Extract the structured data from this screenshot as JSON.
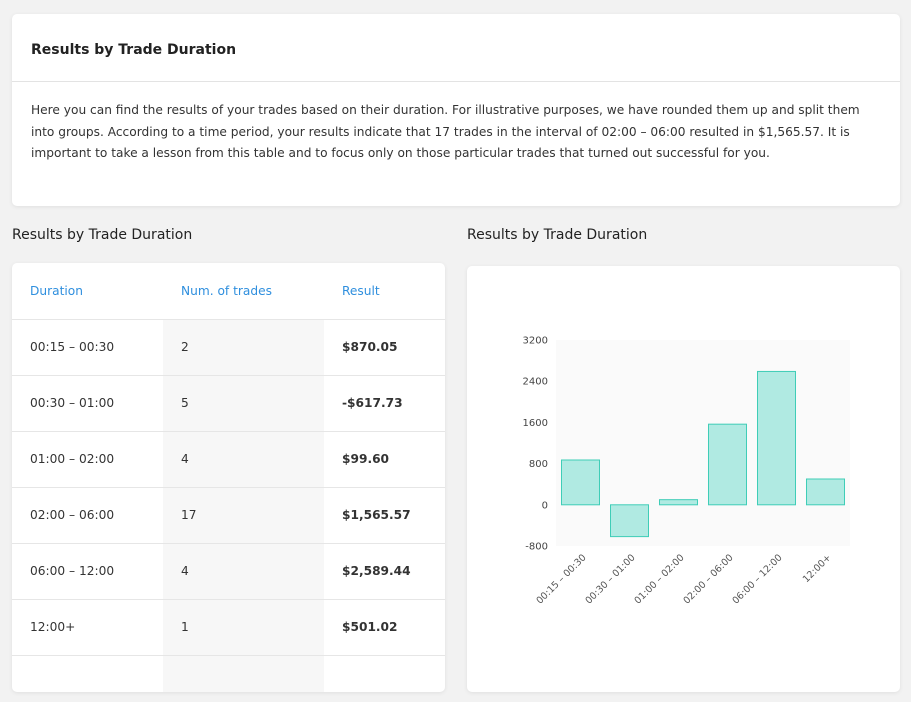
{
  "intro": {
    "title": "Results by Trade Duration",
    "description": "Here you can find the results of your trades based on their duration. For illustrative purposes, we have rounded them up and split them into groups. According to a time period, your results indicate that 17 trades in the interval of 02:00 – 06:00 resulted in $1,565.57. It is important to take a lesson from this table and to focus only on those particular trades that turned out successful for you."
  },
  "table_section": {
    "title": "Results by Trade Duration",
    "headers": [
      "Duration",
      "Num. of trades",
      "Result"
    ],
    "rows": [
      {
        "duration": "00:15 – 00:30",
        "trades": "2",
        "result": "$870.05",
        "sign": "pos"
      },
      {
        "duration": "00:30 – 01:00",
        "trades": "5",
        "result": "-$617.73",
        "sign": "neg"
      },
      {
        "duration": "01:00 – 02:00",
        "trades": "4",
        "result": "$99.60",
        "sign": "pos"
      },
      {
        "duration": "02:00 – 06:00",
        "trades": "17",
        "result": "$1,565.57",
        "sign": "pos"
      },
      {
        "duration": "06:00 – 12:00",
        "trades": "4",
        "result": "$2,589.44",
        "sign": "pos"
      },
      {
        "duration": "12:00+",
        "trades": "1",
        "result": "$501.02",
        "sign": "pos"
      }
    ]
  },
  "chart_section": {
    "title": "Results by Trade Duration"
  },
  "colors": {
    "header_blue": "#2f8fde",
    "positive": "#1bc7a8",
    "negative": "#ef4b5a",
    "bar_fill": "#b0eae2",
    "bar_stroke": "#3fcdb7"
  },
  "chart_data": {
    "type": "bar",
    "categories": [
      "00:15 – 00:30",
      "00:30 – 01:00",
      "01:00 – 02:00",
      "02:00 – 06:00",
      "06:00 – 12:00",
      "12:00+"
    ],
    "values": [
      870.05,
      -617.73,
      99.6,
      1565.57,
      2589.44,
      501.02
    ],
    "yticks": [
      3200,
      2400,
      1600,
      800,
      0,
      -800
    ],
    "ylim": [
      -800,
      3200
    ],
    "grid": false,
    "legend": "none"
  }
}
